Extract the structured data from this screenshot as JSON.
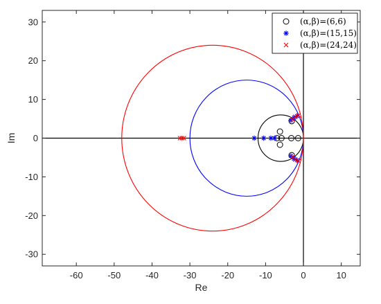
{
  "chart_data": {
    "type": "scatter",
    "xlabel": "Re",
    "ylabel": "Im",
    "xlim": [
      -69,
      15
    ],
    "ylim": [
      -33,
      33
    ],
    "xticks": [
      -60,
      -50,
      -40,
      -30,
      -20,
      -10,
      0,
      10
    ],
    "yticks": [
      -30,
      -20,
      -10,
      0,
      10,
      20,
      30
    ],
    "grid": false,
    "legend_position": "top-right",
    "circles": [
      {
        "center": [
          -6,
          0
        ],
        "radius": 6,
        "color": "#000000"
      },
      {
        "center": [
          -15,
          0
        ],
        "radius": 15,
        "color": "#0000ff"
      },
      {
        "center": [
          -24,
          0
        ],
        "radius": 24,
        "color": "#ff0000"
      }
    ],
    "series": [
      {
        "name": "(α,β)=(6,6)",
        "marker": "circle",
        "color": "#000000",
        "points": [
          [
            -7.0,
            0
          ],
          [
            -5.8,
            0
          ],
          [
            -3.2,
            0
          ],
          [
            -1.4,
            0
          ],
          [
            -6.2,
            1.7
          ],
          [
            -6.2,
            -1.7
          ],
          [
            -3.1,
            4.4
          ],
          [
            -3.1,
            -4.4
          ]
        ]
      },
      {
        "name": "(α,β)=(15,15)",
        "marker": "asterisk",
        "color": "#0000ff",
        "points": [
          [
            -13.0,
            0
          ],
          [
            -10.5,
            0
          ],
          [
            -8.6,
            0
          ],
          [
            -7.6,
            0
          ],
          [
            -3.3,
            4.6
          ],
          [
            -2.5,
            5.3
          ],
          [
            -1.7,
            5.7
          ],
          [
            -3.3,
            -4.6
          ],
          [
            -2.5,
            -5.3
          ],
          [
            -1.7,
            -5.7
          ]
        ]
      },
      {
        "name": "(α,β)=(24,24)",
        "marker": "x",
        "color": "#ff0000",
        "points": [
          [
            -32.6,
            0
          ],
          [
            -32.1,
            0
          ],
          [
            -31.6,
            0
          ],
          [
            -2.9,
            4.9
          ],
          [
            -2.2,
            5.5
          ],
          [
            -1.3,
            5.9
          ],
          [
            -2.9,
            -4.9
          ],
          [
            -2.2,
            -5.5
          ],
          [
            -1.3,
            -5.9
          ]
        ]
      }
    ]
  }
}
